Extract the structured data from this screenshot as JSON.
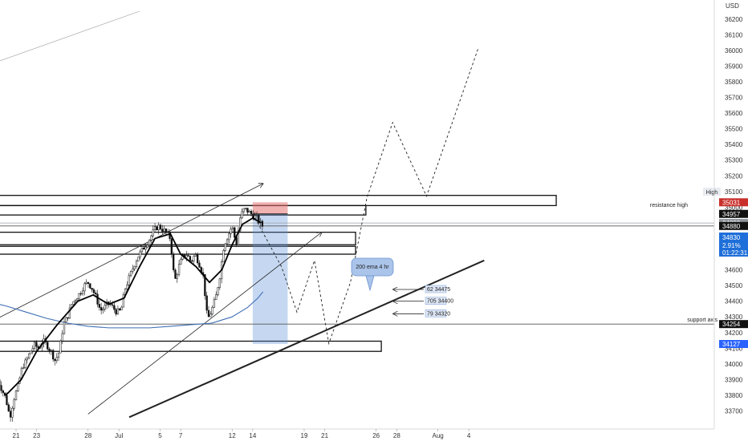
{
  "chart_data": {
    "type": "candlestick",
    "currency": "USD",
    "y_axis": {
      "min": 33650,
      "max": 36250,
      "ticks": [
        33700,
        33800,
        33900,
        34000,
        34100,
        34200,
        34300,
        34400,
        34500,
        34600,
        34700,
        34800,
        34900,
        35000,
        35100,
        35200,
        35300,
        35400,
        35500,
        35600,
        35700,
        35800,
        35900,
        36000,
        36100,
        36200
      ]
    },
    "x_axis": {
      "labels": [
        {
          "label": "21",
          "day": 21
        },
        {
          "label": "23",
          "day": 23
        },
        {
          "label": "28",
          "day": 28
        },
        {
          "label": "Jul",
          "day": 31
        },
        {
          "label": "5",
          "day": 35
        },
        {
          "label": "7",
          "day": 37
        },
        {
          "label": "12",
          "day": 42
        },
        {
          "label": "14",
          "day": 44
        },
        {
          "label": "19",
          "day": 49
        },
        {
          "label": "21",
          "day": 51
        },
        {
          "label": "26",
          "day": 56
        },
        {
          "label": "28",
          "day": 58
        },
        {
          "label": "Aug",
          "day": 62
        },
        {
          "label": "4",
          "day": 65
        }
      ]
    },
    "price_path": [
      [
        19.2,
        33900
      ],
      [
        20.0,
        33780
      ],
      [
        20.4,
        33660
      ],
      [
        20.8,
        33780
      ],
      [
        21.2,
        33860
      ],
      [
        21.6,
        33980
      ],
      [
        22.0,
        34020
      ],
      [
        22.4,
        34080
      ],
      [
        22.8,
        34120
      ],
      [
        23.2,
        34100
      ],
      [
        23.6,
        34150
      ],
      [
        24.0,
        34120
      ],
      [
        24.4,
        34080
      ],
      [
        24.8,
        34020
      ],
      [
        25.2,
        34080
      ],
      [
        25.6,
        34250
      ],
      [
        26.0,
        34300
      ],
      [
        26.4,
        34380
      ],
      [
        26.8,
        34420
      ],
      [
        27.2,
        34450
      ],
      [
        27.6,
        34500
      ],
      [
        28.0,
        34520
      ],
      [
        28.4,
        34480
      ],
      [
        28.8,
        34420
      ],
      [
        29.2,
        34340
      ],
      [
        29.6,
        34360
      ],
      [
        30.0,
        34390
      ],
      [
        30.4,
        34360
      ],
      [
        30.8,
        34330
      ],
      [
        31.2,
        34340
      ],
      [
        31.6,
        34480
      ],
      [
        32.0,
        34550
      ],
      [
        32.4,
        34620
      ],
      [
        32.8,
        34680
      ],
      [
        33.2,
        34720
      ],
      [
        33.6,
        34760
      ],
      [
        34.0,
        34800
      ],
      [
        34.4,
        34850
      ],
      [
        34.8,
        34880
      ],
      [
        35.2,
        34860
      ],
      [
        35.6,
        34840
      ],
      [
        36.0,
        34800
      ],
      [
        36.4,
        34520
      ],
      [
        36.8,
        34620
      ],
      [
        37.2,
        34680
      ],
      [
        37.6,
        34700
      ],
      [
        38.0,
        34650
      ],
      [
        38.4,
        34700
      ],
      [
        38.8,
        34640
      ],
      [
        39.2,
        34560
      ],
      [
        39.6,
        34280
      ],
      [
        40.0,
        34340
      ],
      [
        40.4,
        34420
      ],
      [
        40.8,
        34560
      ],
      [
        41.2,
        34760
      ],
      [
        41.6,
        34820
      ],
      [
        42.0,
        34880
      ],
      [
        42.4,
        34760
      ],
      [
        42.8,
        34940
      ],
      [
        43.2,
        34990
      ],
      [
        43.6,
        34970
      ],
      [
        44.0,
        34950
      ],
      [
        44.4,
        34930
      ],
      [
        44.8,
        34890
      ],
      [
        45.1,
        34870
      ]
    ],
    "ema_short": [
      [
        20.0,
        33800
      ],
      [
        21.5,
        33900
      ],
      [
        23.0,
        34080
      ],
      [
        25.0,
        34250
      ],
      [
        27.0,
        34400
      ],
      [
        28.5,
        34440
      ],
      [
        30.0,
        34380
      ],
      [
        31.5,
        34420
      ],
      [
        33.0,
        34620
      ],
      [
        34.5,
        34800
      ],
      [
        36.0,
        34830
      ],
      [
        37.0,
        34700
      ],
      [
        38.5,
        34620
      ],
      [
        39.8,
        34520
      ],
      [
        41.0,
        34600
      ],
      [
        42.0,
        34760
      ],
      [
        43.0,
        34890
      ],
      [
        44.0,
        34930
      ],
      [
        44.8,
        34900
      ]
    ],
    "ema_200_4hr": [
      [
        18.0,
        34400
      ],
      [
        20.0,
        34370
      ],
      [
        22.0,
        34330
      ],
      [
        24.0,
        34290
      ],
      [
        26.0,
        34260
      ],
      [
        28.0,
        34240
      ],
      [
        30.0,
        34230
      ],
      [
        32.0,
        34230
      ],
      [
        34.0,
        34230
      ],
      [
        36.0,
        34240
      ],
      [
        38.0,
        34250
      ],
      [
        40.0,
        34260
      ],
      [
        42.0,
        34300
      ],
      [
        43.5,
        34360
      ],
      [
        44.5,
        34420
      ],
      [
        45.0,
        34460
      ]
    ],
    "zones": [
      {
        "day_start": 18,
        "day_end": 73.5,
        "price_low": 35010,
        "price_high": 35075
      },
      {
        "day_start": 18,
        "day_end": 55,
        "price_low": 34950,
        "price_high": 35010
      },
      {
        "day_start": 18,
        "day_end": 54,
        "price_low": 34760,
        "price_high": 34840
      },
      {
        "day_start": 18,
        "day_end": 54,
        "price_low": 34700,
        "price_high": 34750
      },
      {
        "day_start": 18,
        "day_end": 56.5,
        "price_low": 34080,
        "price_high": 34145
      }
    ],
    "horizontal_lines": [
      {
        "price": 34899,
        "color": "#9aa0a6"
      },
      {
        "price": 34880,
        "color": "#555555"
      },
      {
        "price": 34254,
        "color": "#555555"
      }
    ],
    "position": {
      "day_start": 44.0,
      "day_end": 47.4,
      "entry": 34957,
      "stop": 35031,
      "target": 34127
    },
    "target_levels": [
      {
        "label": "62 34475",
        "price": 34475
      },
      {
        "label": "705 34400",
        "price": 34400
      },
      {
        "label": "79 34320",
        "price": 34320
      }
    ],
    "projection_path": [
      [
        44.0,
        34957
      ],
      [
        46.8,
        34620
      ],
      [
        48.3,
        34330
      ],
      [
        50.0,
        34660
      ],
      [
        51.4,
        34130
      ],
      [
        53.5,
        34520
      ],
      [
        55.1,
        35060
      ],
      [
        57.6,
        35540
      ],
      [
        60.9,
        35070
      ],
      [
        65.9,
        36010
      ]
    ],
    "trendlines": [
      {
        "from": [
          18,
          34250
        ],
        "to": [
          45,
          35150
        ],
        "arrow": true,
        "weight": "thin"
      },
      {
        "from": [
          28,
          33680
        ],
        "to": [
          50.7,
          34840
        ],
        "arrow": true,
        "weight": "thin"
      },
      {
        "from": [
          32,
          33660
        ],
        "to": [
          66.5,
          34660
        ],
        "arrow": false,
        "weight": "thick"
      },
      {
        "from": [
          18,
          35900
        ],
        "to": [
          33,
          36250
        ],
        "arrow": false,
        "weight": "faint"
      }
    ],
    "labels": {
      "callout": "200 ema 4 hr",
      "resistance": "resistance high",
      "support": "support axis",
      "high_tag": "High"
    },
    "price_badges": [
      {
        "text": "35038",
        "price": 35038,
        "color": "#ffffff",
        "text_color": "#222222"
      },
      {
        "text": "35031",
        "price": 35031,
        "color": "#c9302c",
        "text_color": "#ffffff"
      },
      {
        "text": "34957",
        "price": 34957,
        "color": "#111111",
        "text_color": "#ffffff"
      },
      {
        "text": "34899",
        "price": 34899,
        "color": "#8d939a",
        "text_color": "#ffffff"
      },
      {
        "text": "34880",
        "price": 34880,
        "color": "#111111",
        "text_color": "#ffffff"
      },
      {
        "text": "34254",
        "price": 34254,
        "color": "#111111",
        "text_color": "#ffffff"
      },
      {
        "text": "34127",
        "price": 34127,
        "color": "#2962ff",
        "text_color": "#ffffff"
      }
    ],
    "last_price_badge": {
      "price": "34830",
      "change": "2.91%",
      "timer": "01:22:31",
      "color": "#1e6fd9"
    },
    "grid": false
  }
}
